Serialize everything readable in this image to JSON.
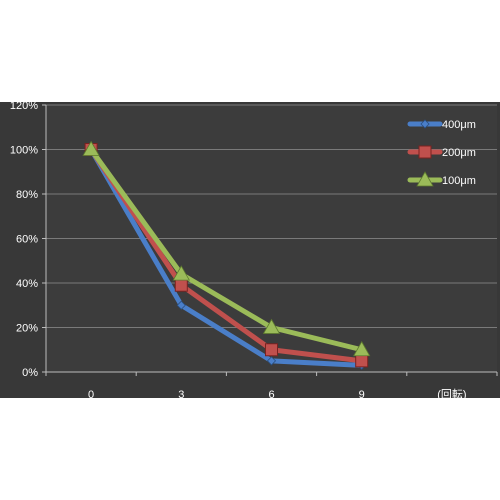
{
  "chart_data": {
    "type": "line",
    "categories": [
      "0",
      "3",
      "6",
      "9"
    ],
    "x_unit_label": "(回転)",
    "y_ticks": [
      "0%",
      "20%",
      "40%",
      "60%",
      "80%",
      "100%",
      "120%"
    ],
    "ylim": [
      0,
      120
    ],
    "grid": true,
    "legend_position": "top-right",
    "series": [
      {
        "name": "400μm",
        "values": [
          100,
          30,
          5,
          3
        ],
        "color": "#4a7ec8",
        "marker": "diamond"
      },
      {
        "name": "200μm",
        "values": [
          100,
          39,
          10,
          5
        ],
        "color": "#c0504d",
        "marker": "square"
      },
      {
        "name": "100μm",
        "values": [
          100,
          44,
          20,
          10
        ],
        "color": "#9bbb59",
        "marker": "triangle"
      }
    ]
  },
  "colors": {
    "panel_background": "#383838",
    "plot_background": "#3c3c3c",
    "grid": "#7a7a7a",
    "axis": "#bdbdbd"
  }
}
